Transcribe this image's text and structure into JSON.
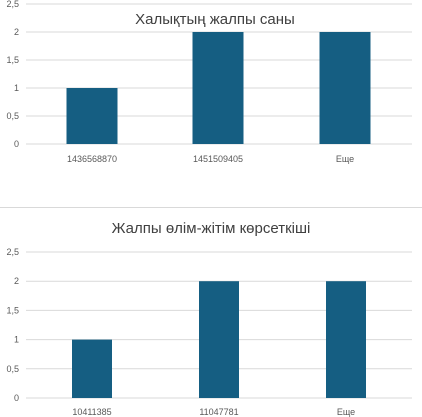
{
  "chart_data": [
    {
      "type": "bar",
      "title": "Халықтың жалпы саны",
      "categories": [
        "1436568870",
        "1451509405",
        "Еще"
      ],
      "values": [
        1,
        2,
        2
      ],
      "ylim": [
        0,
        2.5
      ],
      "yticks": [
        "0",
        "0,5",
        "1",
        "1,5",
        "2",
        "2,5"
      ],
      "grid": true,
      "color": "#155e82"
    },
    {
      "type": "bar",
      "title": "Жалпы өлім-жітім көрсеткіші",
      "categories": [
        "10411385",
        "11047781",
        "Еще"
      ],
      "values": [
        1,
        2,
        2
      ],
      "ylim": [
        0,
        2.5
      ],
      "yticks": [
        "0",
        "0,5",
        "1",
        "1,5",
        "2",
        "2,5"
      ],
      "grid": true,
      "color": "#155e82"
    }
  ]
}
